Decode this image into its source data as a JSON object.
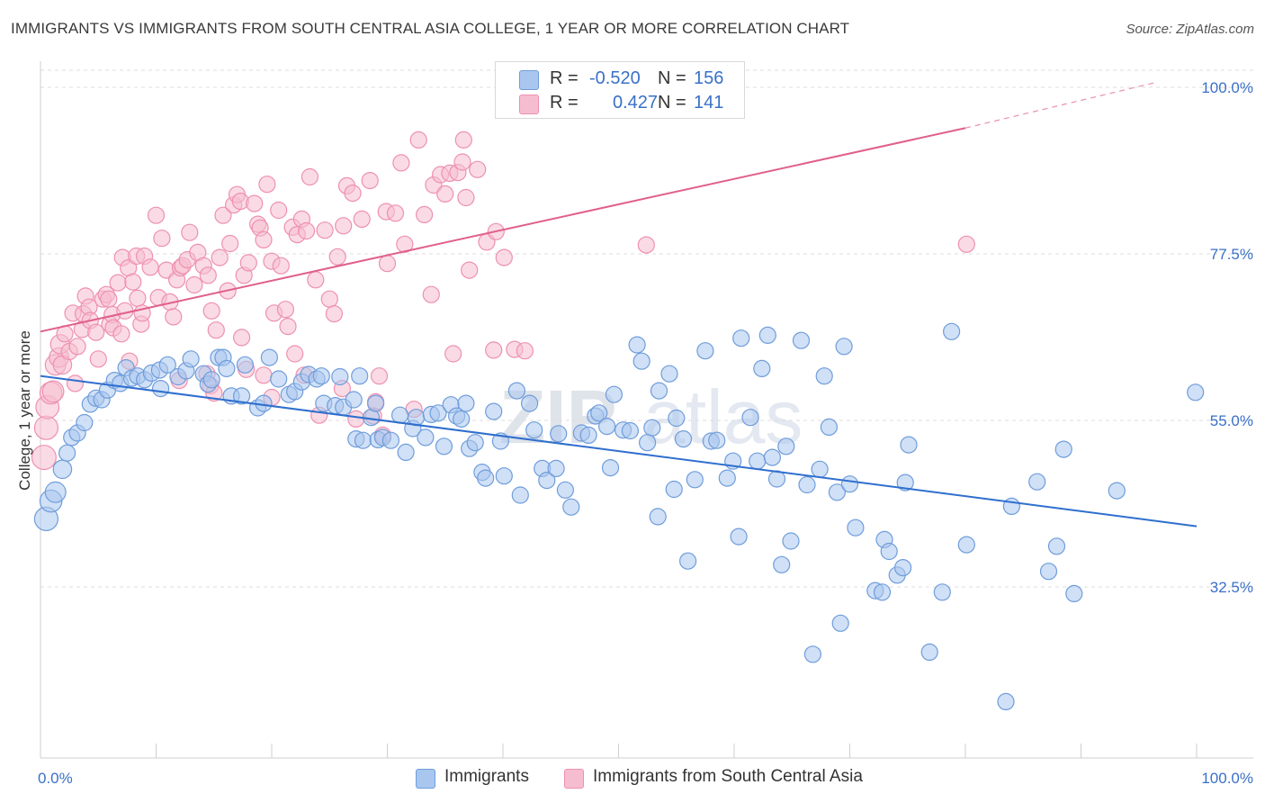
{
  "header": {
    "title": "IMMIGRANTS VS IMMIGRANTS FROM SOUTH CENTRAL ASIA COLLEGE, 1 YEAR OR MORE CORRELATION CHART",
    "source": "Source: ZipAtlas.com"
  },
  "legend_top": {
    "rows": [
      {
        "r_label": "R =",
        "r_value": "-0.520",
        "n_label": "N =",
        "n_value": "156"
      },
      {
        "r_label": "R =",
        "r_value": "0.427",
        "n_label": "N =",
        "n_value": "141"
      }
    ]
  },
  "watermark": {
    "zip": "ZIP",
    "atlas": "atlas"
  },
  "colors": {
    "blue_fill": "#a9c6ee",
    "blue_stroke": "#6f9ddb",
    "blue_line": "#2f6fce",
    "pink_fill": "#f6bdd0",
    "pink_stroke": "#ee90b0",
    "pink_line": "#e0608a",
    "tick": "#3a70c8",
    "grid": "#dcdcdc"
  },
  "chart_data": {
    "type": "scatter",
    "title": "IMMIGRANTS VS IMMIGRANTS FROM SOUTH CENTRAL ASIA COLLEGE, 1 YEAR OR MORE CORRELATION CHART",
    "xlabel": "",
    "ylabel": "College, 1 year or more",
    "xlim": [
      0,
      100
    ],
    "ylim": [
      10,
      105
    ],
    "x_tick_labels": [
      "0.0%",
      "100.0%"
    ],
    "y_ticks": [
      32.5,
      55.0,
      77.5,
      100.0
    ],
    "y_tick_labels": [
      "32.5%",
      "55.0%",
      "77.5%",
      "100.0%"
    ],
    "legend": [
      "Immigrants",
      "Immigrants from South Central Asia"
    ],
    "series": [
      {
        "name": "Immigrants",
        "color": "#6f9ddb",
        "r": -0.52,
        "n": 156,
        "trend": {
          "x0": 0,
          "y0": 61.0,
          "x1": 100,
          "y1": 40.7
        },
        "points": [
          [
            0.5,
            41.7
          ],
          [
            0.9,
            44.1
          ],
          [
            1.3,
            45.3
          ],
          [
            1.9,
            48.4
          ],
          [
            2.3,
            50.6
          ],
          [
            2.7,
            52.7
          ],
          [
            3.2,
            53.3
          ],
          [
            3.8,
            54.7
          ],
          [
            4.3,
            57.2
          ],
          [
            4.8,
            58.0
          ],
          [
            5.3,
            57.8
          ],
          [
            5.8,
            59.1
          ],
          [
            6.4,
            60.4
          ],
          [
            6.9,
            60.0
          ],
          [
            7.4,
            62.1
          ],
          [
            7.9,
            60.7
          ],
          [
            8.4,
            61.0
          ],
          [
            9.0,
            60.5
          ],
          [
            9.6,
            61.4
          ],
          [
            10.3,
            61.8
          ],
          [
            10.4,
            59.3
          ],
          [
            11.0,
            62.5
          ],
          [
            11.9,
            60.9
          ],
          [
            12.6,
            61.7
          ],
          [
            13.0,
            63.3
          ],
          [
            14.1,
            61.3
          ],
          [
            14.5,
            59.9
          ],
          [
            14.8,
            60.5
          ],
          [
            15.4,
            63.5
          ],
          [
            15.8,
            63.5
          ],
          [
            16.5,
            58.3
          ],
          [
            16.1,
            62.0
          ],
          [
            17.4,
            58.3
          ],
          [
            17.7,
            62.5
          ],
          [
            18.8,
            56.7
          ],
          [
            19.3,
            57.3
          ],
          [
            19.8,
            63.5
          ],
          [
            20.6,
            60.6
          ],
          [
            21.5,
            58.5
          ],
          [
            22.0,
            58.9
          ],
          [
            22.6,
            60.2
          ],
          [
            23.2,
            61.2
          ],
          [
            23.9,
            60.6
          ],
          [
            24.3,
            61.0
          ],
          [
            24.5,
            57.3
          ],
          [
            25.5,
            57.0
          ],
          [
            25.9,
            60.9
          ],
          [
            26.2,
            56.8
          ],
          [
            27.1,
            57.8
          ],
          [
            27.6,
            61.0
          ],
          [
            27.3,
            52.5
          ],
          [
            27.9,
            52.3
          ],
          [
            28.6,
            55.4
          ],
          [
            29.0,
            57.3
          ],
          [
            29.2,
            52.4
          ],
          [
            29.6,
            52.7
          ],
          [
            30.3,
            52.3
          ],
          [
            31.1,
            55.7
          ],
          [
            31.6,
            50.7
          ],
          [
            32.2,
            53.9
          ],
          [
            32.5,
            55.4
          ],
          [
            33.3,
            52.7
          ],
          [
            33.8,
            55.8
          ],
          [
            34.4,
            56.0
          ],
          [
            34.9,
            51.5
          ],
          [
            35.5,
            57.1
          ],
          [
            36.0,
            55.6
          ],
          [
            36.4,
            55.2
          ],
          [
            36.8,
            57.3
          ],
          [
            37.1,
            51.2
          ],
          [
            37.6,
            52.0
          ],
          [
            38.2,
            48.0
          ],
          [
            38.5,
            47.2
          ],
          [
            39.2,
            56.2
          ],
          [
            39.8,
            52.2
          ],
          [
            40.1,
            47.5
          ],
          [
            41.2,
            59.0
          ],
          [
            41.5,
            44.9
          ],
          [
            42.7,
            53.7
          ],
          [
            42.3,
            57.3
          ],
          [
            43.4,
            48.5
          ],
          [
            43.8,
            46.9
          ],
          [
            44.6,
            48.5
          ],
          [
            44.8,
            53.2
          ],
          [
            45.4,
            45.6
          ],
          [
            45.9,
            43.3
          ],
          [
            46.8,
            53.3
          ],
          [
            47.4,
            53.0
          ],
          [
            48.0,
            55.6
          ],
          [
            48.3,
            56.0
          ],
          [
            49.0,
            54.2
          ],
          [
            49.3,
            48.6
          ],
          [
            49.6,
            58.5
          ],
          [
            50.4,
            53.7
          ],
          [
            51.0,
            53.6
          ],
          [
            51.6,
            65.2
          ],
          [
            52.0,
            63.0
          ],
          [
            52.9,
            54.0
          ],
          [
            53.4,
            42.0
          ],
          [
            53.5,
            59.0
          ],
          [
            54.4,
            61.3
          ],
          [
            54.8,
            45.7
          ],
          [
            55.0,
            55.3
          ],
          [
            55.6,
            52.5
          ],
          [
            56.0,
            36.0
          ],
          [
            56.6,
            47.0
          ],
          [
            57.5,
            64.4
          ],
          [
            58.0,
            52.2
          ],
          [
            58.5,
            52.3
          ],
          [
            59.4,
            47.2
          ],
          [
            59.9,
            49.5
          ],
          [
            60.4,
            39.3
          ],
          [
            60.6,
            66.1
          ],
          [
            61.4,
            55.4
          ],
          [
            62.0,
            49.5
          ],
          [
            62.4,
            62.0
          ],
          [
            62.9,
            66.5
          ],
          [
            63.3,
            50.0
          ],
          [
            63.7,
            47.1
          ],
          [
            64.1,
            35.5
          ],
          [
            64.5,
            51.5
          ],
          [
            64.9,
            38.7
          ],
          [
            65.8,
            65.8
          ],
          [
            66.3,
            46.3
          ],
          [
            66.8,
            23.4
          ],
          [
            67.4,
            48.4
          ],
          [
            68.2,
            54.1
          ],
          [
            68.9,
            45.3
          ],
          [
            69.2,
            27.6
          ],
          [
            69.5,
            65.0
          ],
          [
            70.0,
            46.4
          ],
          [
            70.5,
            40.5
          ],
          [
            72.2,
            32.0
          ],
          [
            72.8,
            31.8
          ],
          [
            73.0,
            38.9
          ],
          [
            73.4,
            37.3
          ],
          [
            74.1,
            34.1
          ],
          [
            74.6,
            35.1
          ],
          [
            74.8,
            46.6
          ],
          [
            76.9,
            23.7
          ],
          [
            78.0,
            31.8
          ],
          [
            78.8,
            67.0
          ],
          [
            80.1,
            38.2
          ],
          [
            83.5,
            17.0
          ],
          [
            86.2,
            46.7
          ],
          [
            87.2,
            34.6
          ],
          [
            87.9,
            38.0
          ],
          [
            89.4,
            31.6
          ],
          [
            93.1,
            45.5
          ],
          [
            99.9,
            58.8
          ],
          [
            52.5,
            52.0
          ],
          [
            67.8,
            61.0
          ],
          [
            75.1,
            51.7
          ],
          [
            84.0,
            43.4
          ],
          [
            88.5,
            51.1
          ]
        ]
      },
      {
        "name": "Immigrants from South Central Asia",
        "color": "#ee90b0",
        "r": 0.427,
        "n": 141,
        "trend": {
          "x0": 0,
          "y0": 67.0,
          "x1": 80,
          "y1": 94.5
        },
        "trend_dashed": {
          "x0": 80,
          "y0": 94.5,
          "x1": 96.3,
          "y1": 100.6
        },
        "points": [
          [
            0.3,
            50.0
          ],
          [
            0.5,
            54.0
          ],
          [
            0.6,
            56.8
          ],
          [
            0.9,
            58.7
          ],
          [
            1.1,
            58.9
          ],
          [
            1.3,
            62.5
          ],
          [
            1.6,
            63.5
          ],
          [
            1.7,
            65.3
          ],
          [
            1.9,
            62.5
          ],
          [
            2.1,
            66.7
          ],
          [
            2.5,
            64.3
          ],
          [
            2.8,
            69.5
          ],
          [
            3.0,
            60.0
          ],
          [
            3.2,
            65.0
          ],
          [
            3.6,
            67.3
          ],
          [
            3.7,
            69.4
          ],
          [
            3.9,
            71.8
          ],
          [
            4.2,
            70.3
          ],
          [
            4.3,
            68.5
          ],
          [
            4.8,
            66.9
          ],
          [
            5.0,
            63.3
          ],
          [
            5.4,
            71.4
          ],
          [
            5.7,
            72.0
          ],
          [
            5.9,
            71.4
          ],
          [
            6.0,
            68.0
          ],
          [
            6.2,
            69.3
          ],
          [
            6.3,
            67.5
          ],
          [
            6.7,
            73.6
          ],
          [
            7.0,
            66.7
          ],
          [
            7.1,
            77.0
          ],
          [
            7.3,
            69.8
          ],
          [
            7.6,
            75.6
          ],
          [
            8.0,
            73.7
          ],
          [
            8.3,
            77.2
          ],
          [
            8.4,
            71.5
          ],
          [
            8.7,
            68.0
          ],
          [
            8.8,
            69.5
          ],
          [
            9.0,
            77.2
          ],
          [
            9.5,
            75.7
          ],
          [
            10.0,
            82.7
          ],
          [
            10.2,
            71.6
          ],
          [
            10.5,
            79.6
          ],
          [
            10.9,
            75.3
          ],
          [
            11.2,
            71.0
          ],
          [
            11.5,
            69.0
          ],
          [
            11.8,
            74.0
          ],
          [
            12.1,
            75.6
          ],
          [
            12.3,
            75.9
          ],
          [
            12.7,
            76.7
          ],
          [
            12.9,
            80.4
          ],
          [
            13.3,
            73.3
          ],
          [
            13.6,
            77.7
          ],
          [
            14.1,
            75.9
          ],
          [
            14.4,
            61.3
          ],
          [
            14.5,
            74.6
          ],
          [
            14.7,
            59.7
          ],
          [
            14.8,
            69.8
          ],
          [
            15.2,
            67.2
          ],
          [
            15.5,
            77.0
          ],
          [
            15.8,
            82.7
          ],
          [
            16.2,
            72.5
          ],
          [
            16.4,
            78.9
          ],
          [
            16.7,
            84.1
          ],
          [
            17.0,
            85.5
          ],
          [
            17.3,
            84.6
          ],
          [
            17.4,
            66.2
          ],
          [
            17.6,
            74.6
          ],
          [
            18.0,
            76.3
          ],
          [
            18.5,
            84.3
          ],
          [
            18.8,
            81.5
          ],
          [
            19.0,
            81.0
          ],
          [
            19.3,
            79.4
          ],
          [
            19.6,
            86.9
          ],
          [
            20.0,
            76.5
          ],
          [
            20.2,
            69.5
          ],
          [
            20.6,
            83.4
          ],
          [
            20.8,
            75.9
          ],
          [
            21.2,
            70.0
          ],
          [
            21.4,
            67.7
          ],
          [
            21.8,
            81.1
          ],
          [
            22.0,
            64.0
          ],
          [
            22.2,
            80.1
          ],
          [
            22.6,
            82.2
          ],
          [
            23.0,
            80.6
          ],
          [
            23.3,
            87.9
          ],
          [
            23.8,
            74.0
          ],
          [
            24.1,
            55.7
          ],
          [
            24.6,
            80.7
          ],
          [
            25.0,
            71.4
          ],
          [
            25.4,
            69.4
          ],
          [
            25.7,
            77.1
          ],
          [
            26.2,
            81.3
          ],
          [
            26.5,
            86.7
          ],
          [
            27.0,
            85.7
          ],
          [
            27.3,
            55.2
          ],
          [
            27.8,
            82.2
          ],
          [
            28.5,
            87.4
          ],
          [
            29.0,
            57.5
          ],
          [
            29.3,
            61.0
          ],
          [
            29.6,
            53.0
          ],
          [
            29.9,
            83.2
          ],
          [
            30.0,
            76.2
          ],
          [
            30.7,
            83.0
          ],
          [
            31.2,
            89.8
          ],
          [
            31.5,
            78.8
          ],
          [
            32.3,
            56.5
          ],
          [
            32.7,
            92.9
          ],
          [
            33.2,
            82.8
          ],
          [
            33.8,
            72.0
          ],
          [
            34.0,
            86.8
          ],
          [
            34.6,
            88.2
          ],
          [
            35.0,
            85.6
          ],
          [
            35.4,
            88.4
          ],
          [
            35.7,
            64.0
          ],
          [
            36.1,
            88.5
          ],
          [
            36.5,
            89.9
          ],
          [
            36.8,
            85.1
          ],
          [
            37.1,
            75.3
          ],
          [
            37.8,
            88.9
          ],
          [
            38.6,
            79.1
          ],
          [
            39.2,
            64.5
          ],
          [
            39.4,
            80.5
          ],
          [
            40.1,
            77.0
          ],
          [
            41.0,
            64.6
          ],
          [
            41.9,
            64.4
          ],
          [
            52.4,
            78.7
          ],
          [
            80.1,
            78.8
          ],
          [
            36.6,
            92.9
          ],
          [
            19.3,
            61.1
          ],
          [
            7.7,
            63.0
          ],
          [
            12.0,
            60.4
          ],
          [
            15.0,
            58.7
          ],
          [
            17.8,
            61.9
          ],
          [
            20.0,
            58.1
          ],
          [
            26.1,
            59.3
          ],
          [
            28.8,
            55.6
          ],
          [
            22.8,
            61.1
          ]
        ]
      }
    ]
  }
}
